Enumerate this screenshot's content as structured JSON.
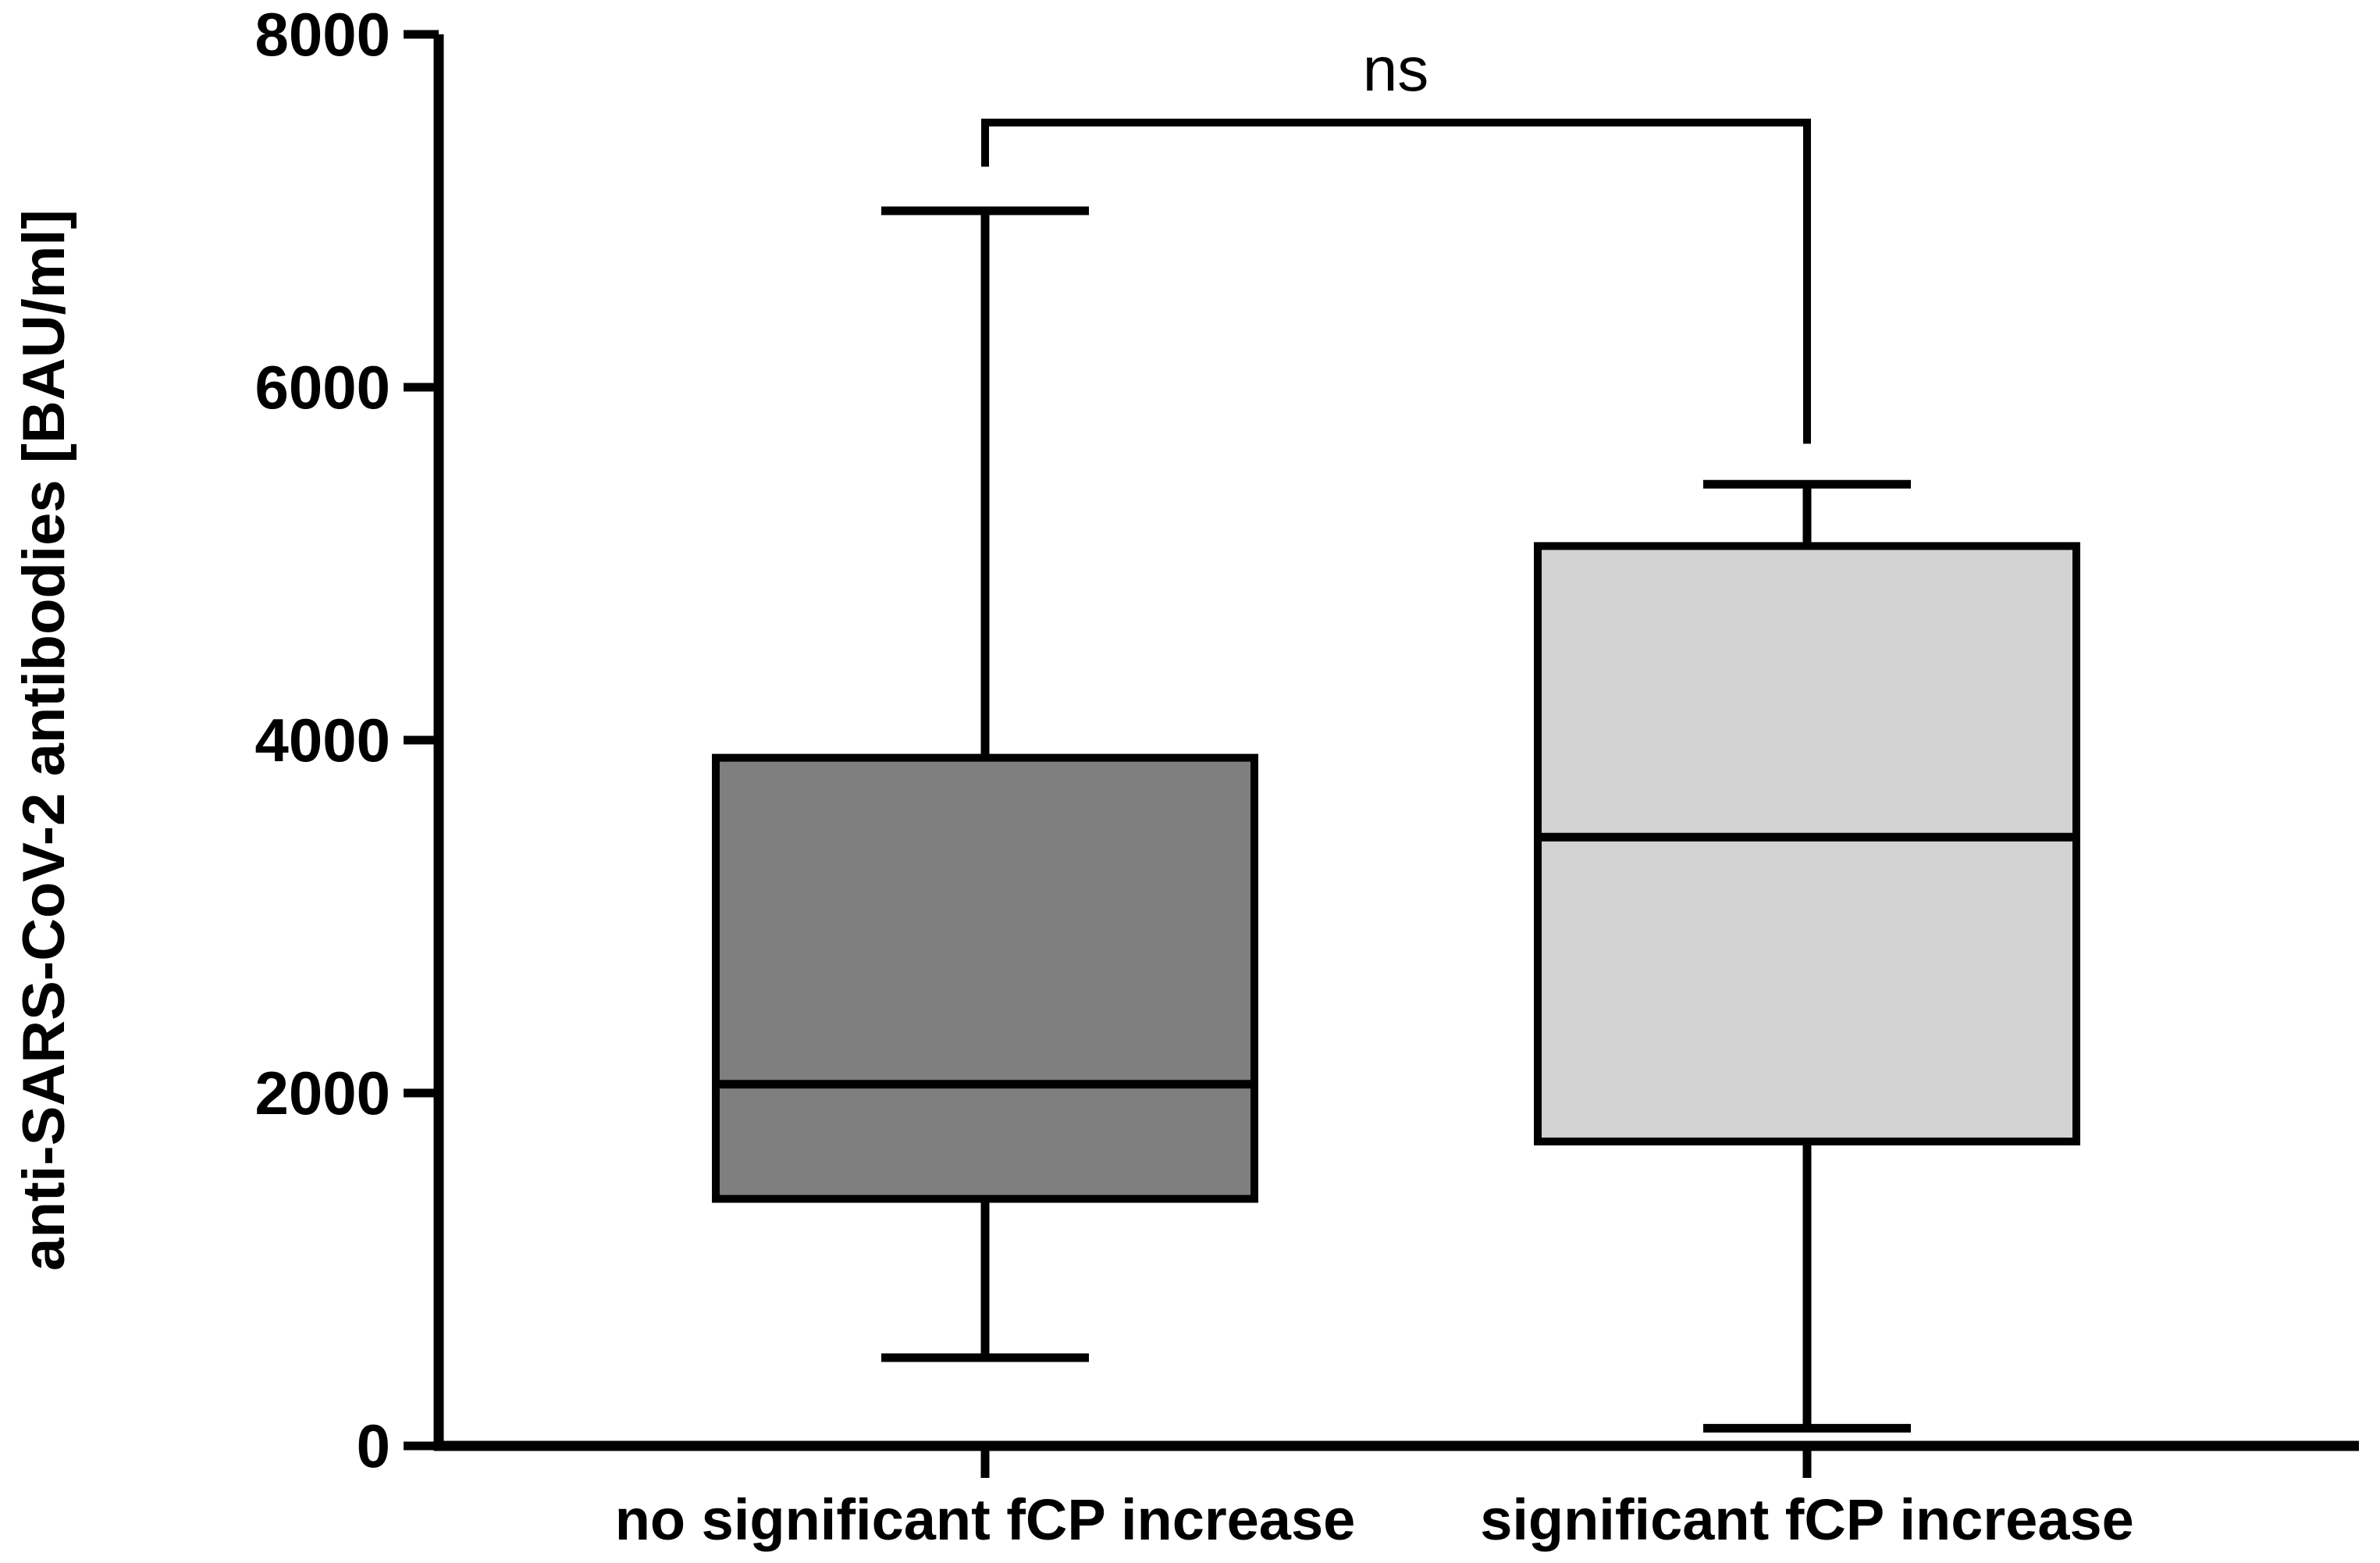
{
  "figure": {
    "background": "#ffffff",
    "line_color": "#000000"
  },
  "chart_data": {
    "type": "boxplot",
    "title": "",
    "xlabel": "",
    "ylabel": "anti-SARS-CoV-2 antibodies [BAU/ml]",
    "ylim": [
      0,
      8000
    ],
    "yticks": [
      0,
      2000,
      4000,
      6000,
      8000
    ],
    "grid": "off",
    "legend": "none",
    "categories": [
      "no significant fCP increase",
      "significant fCP increase"
    ],
    "series": [
      {
        "name": "no significant fCP increase",
        "min": 500,
        "q1": 1400,
        "median": 2050,
        "q3": 3900,
        "max": 7000,
        "fill": "#7f7f7f",
        "stroke": "#000000"
      },
      {
        "name": "significant fCP increase",
        "min": 100,
        "q1": 1725,
        "median": 3450,
        "q3": 5100,
        "max": 5450,
        "fill": "#d2d2d2",
        "stroke": "#000000"
      }
    ],
    "annotation": {
      "label": "ns",
      "between": [
        "no significant fCP increase",
        "significant fCP increase"
      ],
      "bracket_y_value": 7500,
      "left_drop_value": 7250,
      "right_drop_value": 5680
    }
  }
}
